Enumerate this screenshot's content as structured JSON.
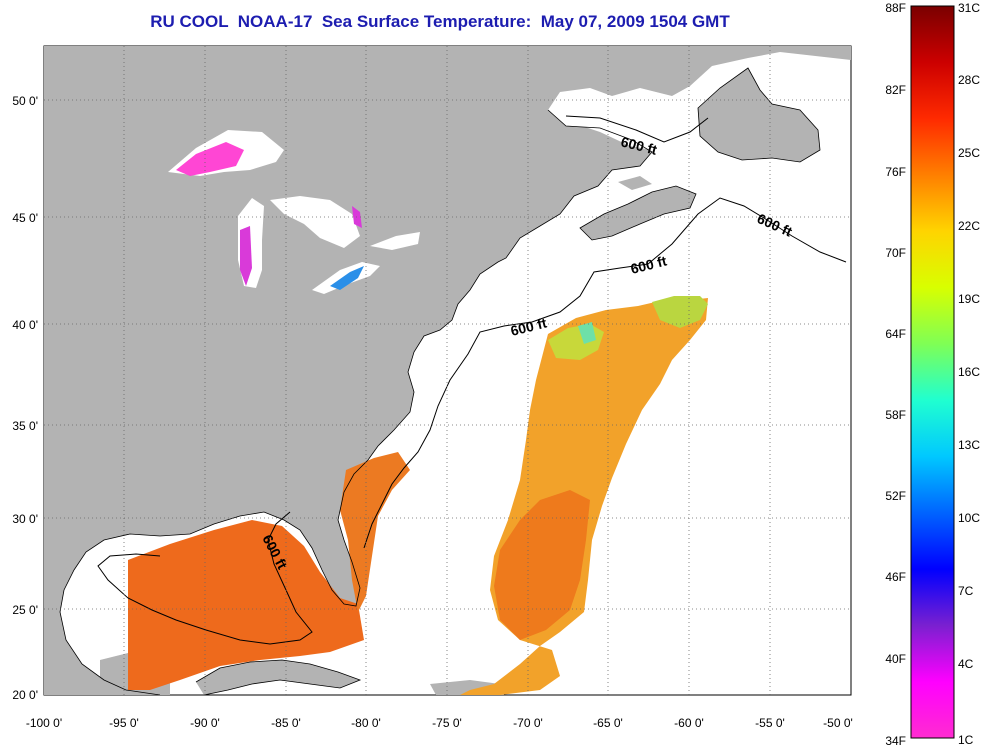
{
  "title": "RU COOL  NOAA-17  Sea Surface Temperature:  May 07, 2009 1504 GMT",
  "colors": {
    "title": "#1d1db0",
    "land": "#b3b3b3",
    "water_no_data": "#ffffff"
  },
  "axes": {
    "x_ticks": [
      "-100 0'",
      "-95 0'",
      "-90 0'",
      "-85 0'",
      "-80 0'",
      "-75 0'",
      "-70 0'",
      "-65 0'",
      "-60 0'",
      "-55 0'",
      "-50 0'"
    ],
    "y_ticks": [
      "50 0'",
      "45 0'",
      "40 0'",
      "35 0'",
      "30 0'",
      "25 0'",
      "20 0'"
    ]
  },
  "isobath_labels": [
    "600 ft",
    "600 ft",
    "600 ft",
    "600 ft",
    "600 ft"
  ],
  "colorbar": {
    "fahrenheit": [
      "88F",
      "82F",
      "76F",
      "70F",
      "64F",
      "58F",
      "52F",
      "46F",
      "40F",
      "34F"
    ],
    "celsius": [
      "31C",
      "28C",
      "25C",
      "22C",
      "19C",
      "16C",
      "13C",
      "10C",
      "7C",
      "4C",
      "1C"
    ],
    "gradient": [
      "#7a0000",
      "#cc0000",
      "#ff2a00",
      "#ff7f00",
      "#ffd400",
      "#d8ff00",
      "#7fff55",
      "#20ffd0",
      "#00c8ff",
      "#0064ff",
      "#0000ff",
      "#7a20d0",
      "#ff00ff",
      "#ff2cd0"
    ]
  }
}
